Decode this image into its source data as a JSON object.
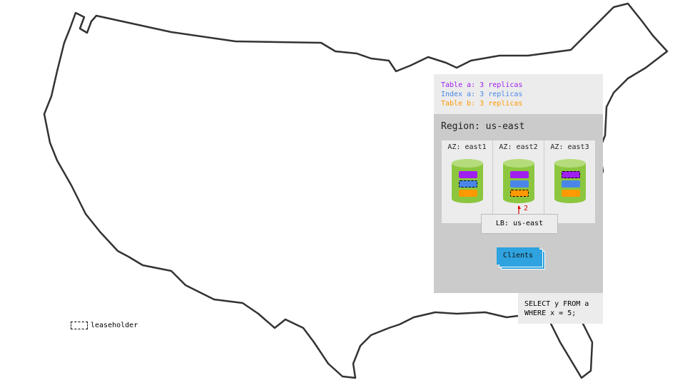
{
  "legend": {
    "items": [
      {
        "label": "Table a: 3 replicas",
        "color": "#a020f0"
      },
      {
        "label": "Index a: 3 replicas",
        "color": "#4a86e8"
      },
      {
        "label": "Table b: 3 replicas",
        "color": "#ff9900"
      }
    ]
  },
  "region": {
    "title": "Region: us-east",
    "zones": [
      {
        "label": "AZ: east1",
        "leaseholder": "Index a"
      },
      {
        "label": "AZ: east2",
        "leaseholder": "Table b"
      },
      {
        "label": "AZ: east3",
        "leaseholder": "Table a"
      }
    ],
    "load_balancer": "LB: us-east",
    "arrow_label": "2",
    "clients": "Clients"
  },
  "query": {
    "line1": "SELECT y FROM a",
    "line2": "WHERE x = 5;"
  },
  "leaseholder_legend": "leaseholder",
  "colors": {
    "cylinder": "#8cc63f",
    "cylinder_top": "#b5dc7a",
    "clients": "#2ea3df",
    "arrow": "#e00000"
  }
}
